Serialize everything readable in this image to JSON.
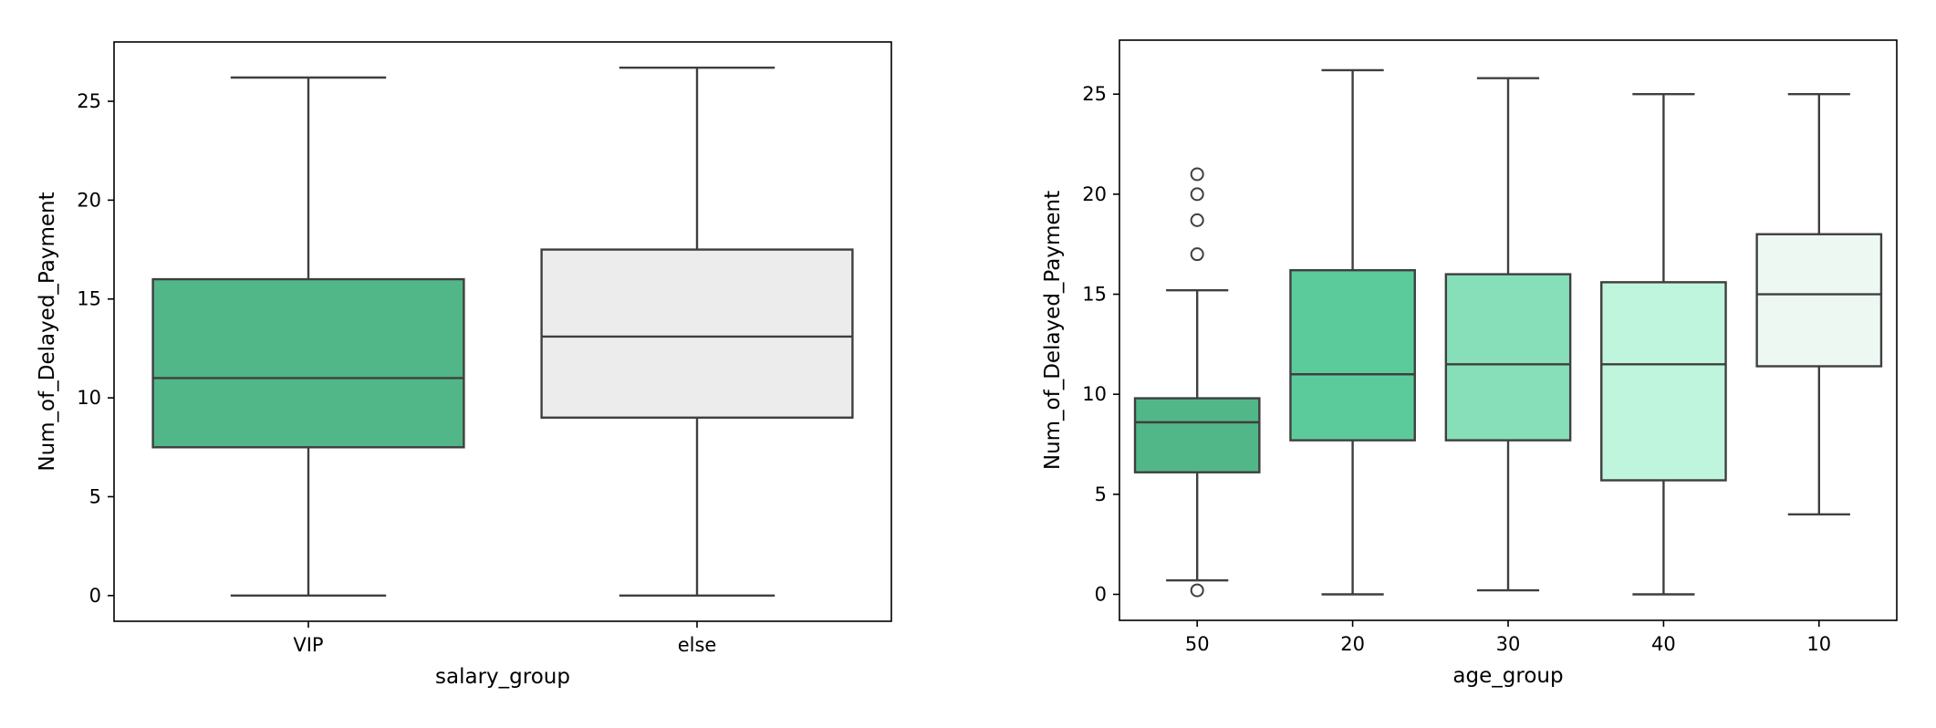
{
  "chart_data": [
    {
      "type": "box",
      "title": "",
      "xlabel": "salary_group",
      "ylabel": "Num_of_Delayed_Payment",
      "ylim": [
        -1.3,
        28
      ],
      "yticks": [
        0,
        5,
        10,
        15,
        20,
        25
      ],
      "grid": false,
      "legend": "none",
      "categories": [
        "VIP",
        "else"
      ],
      "boxes": [
        {
          "category": "VIP",
          "whisker_low": 0,
          "q1": 7.5,
          "median": 11,
          "q3": 16,
          "whisker_high": 26.2,
          "outliers": [],
          "color": "#52b788"
        },
        {
          "category": "else",
          "whisker_low": 0,
          "q1": 9,
          "median": 13.1,
          "q3": 17.5,
          "whisker_high": 26.7,
          "outliers": [],
          "color": "#ececec"
        }
      ]
    },
    {
      "type": "box",
      "title": "",
      "xlabel": "age_group",
      "ylabel": "Num_of_Delayed_Payment",
      "ylim": [
        -1.3,
        27.7
      ],
      "yticks": [
        0,
        5,
        10,
        15,
        20,
        25
      ],
      "grid": false,
      "legend": "none",
      "categories": [
        "50",
        "20",
        "30",
        "40",
        "10"
      ],
      "boxes": [
        {
          "category": "50",
          "whisker_low": 0.7,
          "q1": 6.1,
          "median": 8.6,
          "q3": 9.8,
          "whisker_high": 15.2,
          "outliers": [
            0.2,
            17,
            18.7,
            20,
            21
          ],
          "color": "#52b788"
        },
        {
          "category": "20",
          "whisker_low": 0,
          "q1": 7.7,
          "median": 11,
          "q3": 16.2,
          "whisker_high": 26.2,
          "outliers": [],
          "color": "#5ccb9c"
        },
        {
          "category": "30",
          "whisker_low": 0.2,
          "q1": 7.7,
          "median": 11.5,
          "q3": 16,
          "whisker_high": 25.8,
          "outliers": [],
          "color": "#86dfb8"
        },
        {
          "category": "40",
          "whisker_low": 0,
          "q1": 5.7,
          "median": 11.5,
          "q3": 15.6,
          "whisker_high": 25,
          "outliers": [],
          "color": "#c0f5dd"
        },
        {
          "category": "10",
          "whisker_low": 4,
          "q1": 11.4,
          "median": 15,
          "q3": 18,
          "whisker_high": 25,
          "outliers": [],
          "color": "#eef8f3"
        }
      ]
    }
  ]
}
